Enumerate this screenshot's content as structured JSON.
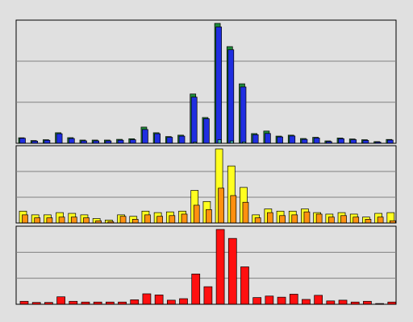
{
  "chart_data": [
    {
      "type": "bar",
      "panel": "top",
      "ylim": [
        0,
        1
      ],
      "grid": true,
      "series": [
        {
          "color": "#1f8a3a",
          "values": [
            0.046,
            0.023,
            0.03,
            0.088,
            0.047,
            0.027,
            0.027,
            0.027,
            0.033,
            0.038,
            0.135,
            0.088,
            0.056,
            0.068,
            0.411,
            0.215,
            1.0,
            0.806,
            0.496,
            0.081,
            0.102,
            0.06,
            0.068,
            0.04,
            0.05,
            0.02,
            0.044,
            0.036,
            0.03,
            0.014,
            0.032
          ]
        },
        {
          "color": "#1f2ee0",
          "values": [
            0.042,
            0.018,
            0.025,
            0.08,
            0.04,
            0.02,
            0.02,
            0.02,
            0.026,
            0.03,
            0.115,
            0.08,
            0.05,
            0.06,
            0.385,
            0.205,
            0.97,
            0.78,
            0.47,
            0.072,
            0.082,
            0.053,
            0.061,
            0.033,
            0.044,
            0.014,
            0.038,
            0.03,
            0.024,
            0.01,
            0.027
          ]
        },
        {
          "color": "#40b0b0",
          "values": [
            0,
            0,
            0,
            0,
            0,
            0,
            0,
            0,
            0,
            0,
            0,
            0,
            0,
            0,
            0.01,
            0,
            0.03,
            0.02,
            0.012,
            0,
            0,
            0,
            0,
            0,
            0,
            0,
            0,
            0,
            0,
            0,
            0
          ]
        }
      ]
    },
    {
      "type": "bar",
      "panel": "middle",
      "ylim": [
        0,
        1
      ],
      "grid": true,
      "series": [
        {
          "color": "#ffff20",
          "values": [
            0.16,
            0.11,
            0.11,
            0.14,
            0.13,
            0.11,
            0.06,
            0.04,
            0.11,
            0.09,
            0.16,
            0.14,
            0.15,
            0.16,
            0.44,
            0.29,
            1.0,
            0.77,
            0.48,
            0.11,
            0.19,
            0.16,
            0.16,
            0.19,
            0.14,
            0.12,
            0.14,
            0.12,
            0.08,
            0.13,
            0.14
          ]
        },
        {
          "color": "#ff9010",
          "values": [
            0.11,
            0.07,
            0.07,
            0.08,
            0.08,
            0.07,
            0.03,
            0.02,
            0.09,
            0.05,
            0.11,
            0.09,
            0.1,
            0.12,
            0.24,
            0.18,
            0.47,
            0.37,
            0.28,
            0.07,
            0.14,
            0.1,
            0.11,
            0.15,
            0.12,
            0.08,
            0.1,
            0.08,
            0.05,
            0.08,
            0.03
          ]
        }
      ]
    },
    {
      "type": "bar",
      "panel": "bottom",
      "ylim": [
        0,
        1
      ],
      "grid": true,
      "series": [
        {
          "color": "#ff1010",
          "values": [
            0.04,
            0.025,
            0.025,
            0.1,
            0.04,
            0.03,
            0.03,
            0.03,
            0.03,
            0.06,
            0.14,
            0.125,
            0.055,
            0.075,
            0.405,
            0.235,
            1.0,
            0.88,
            0.5,
            0.09,
            0.11,
            0.095,
            0.135,
            0.065,
            0.12,
            0.045,
            0.055,
            0.03,
            0.04,
            0.01,
            0.03
          ]
        }
      ]
    }
  ]
}
